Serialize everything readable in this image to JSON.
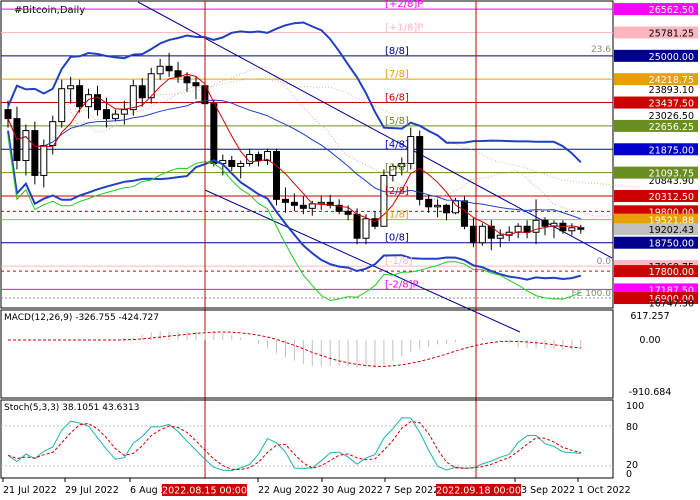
{
  "chart_data": {
    "type": "candlestick",
    "title": "#Bitcoin,Daily",
    "x_ticks": [
      "21 Jul 2022",
      "29 Jul 2022",
      "6 Aug 2022",
      "22 Aug 2022",
      "30 Aug 2022",
      "7 Sep 2022",
      "23 Sep 2022",
      "1 Oct 2022"
    ],
    "x_tick_highlights": [
      "2022.08.15 00:00",
      "2022.09.18 00:00"
    ],
    "y_range": [
      16600,
      26800
    ],
    "price_axis_labels": [
      "26562.50",
      "25781.25",
      "25000.00",
      "24218.75",
      "23893.10",
      "23437.50",
      "23026.50",
      "22656.25",
      "21875.00",
      "20843.90",
      "21093.75",
      "20312.50",
      "19800.00",
      "19521.88",
      "19202.43",
      "18750.00",
      "17968.75",
      "17800.00",
      "17187.50",
      "16900.00",
      "16747.30"
    ],
    "murrey_levels": [
      {
        "label": "[+2/8]P",
        "value": 26562.5,
        "color": "#ff00ff"
      },
      {
        "label": "[+1/8]P",
        "value": 25781.25,
        "color": "#ffb6c1"
      },
      {
        "label": "[8/8]",
        "value": 25000,
        "color": "#00008b"
      },
      {
        "label": "[7/8]",
        "value": 24218.75,
        "color": "#e8a000"
      },
      {
        "label": "[6/8]",
        "value": 23437.5,
        "color": "#cc0000"
      },
      {
        "label": "[5/8]",
        "value": 22656.25,
        "color": "#6b8e23"
      },
      {
        "label": "[4/8]",
        "value": 21875,
        "color": "#0000cd"
      },
      {
        "label": "[3/8]",
        "value": 21093.75,
        "color": "#6b8e23"
      },
      {
        "label": "[2/8]",
        "value": 20312.5,
        "color": "#cc0000"
      },
      {
        "label": "[1/8]",
        "value": 19521.88,
        "color": "#e8a000"
      },
      {
        "label": "[0/8]",
        "value": 18750,
        "color": "#00008b"
      },
      {
        "label": "[-1/8]",
        "value": 17968.75,
        "color": "#ffb6c1"
      },
      {
        "label": "[-2/8]P",
        "value": 17187.5,
        "color": "#ff00ff"
      }
    ],
    "fibo_labels": [
      {
        "label": "23.6",
        "value": 25060
      },
      {
        "label": "0.0",
        "value": 17968.75
      },
      {
        "label": "FE 100.0",
        "value": 16900
      }
    ],
    "macd": {
      "label": "MACD(12,26,9) -326.755 -424.727",
      "scale": [
        "617.257",
        "0.00",
        "-910.684"
      ]
    },
    "stoch": {
      "label": "Stoch(5,3,3) 38.1051 43.6313",
      "scale": [
        "100",
        "80",
        "20",
        "0"
      ]
    },
    "candles": [
      [
        23200,
        23500,
        22600,
        22900
      ],
      [
        22900,
        23300,
        21200,
        21500
      ],
      [
        21500,
        22700,
        21000,
        22500
      ],
      [
        22500,
        22800,
        20700,
        21000
      ],
      [
        21000,
        22200,
        20600,
        22000
      ],
      [
        22000,
        23000,
        21700,
        22800
      ],
      [
        22800,
        24200,
        22600,
        23900
      ],
      [
        23900,
        24300,
        23400,
        24000
      ],
      [
        24000,
        24200,
        23100,
        23300
      ],
      [
        23300,
        23900,
        22900,
        23700
      ],
      [
        23700,
        24000,
        23000,
        23200
      ],
      [
        23200,
        23600,
        22600,
        22900
      ],
      [
        22900,
        23200,
        22800,
        23050
      ],
      [
        23050,
        23500,
        22700,
        23200
      ],
      [
        23200,
        24200,
        23000,
        24000
      ],
      [
        24000,
        24250,
        23300,
        23600
      ],
      [
        23600,
        24600,
        23400,
        24400
      ],
      [
        24400,
        24900,
        24200,
        24650
      ],
      [
        24650,
        25100,
        24300,
        24500
      ],
      [
        24500,
        24800,
        24100,
        24300
      ],
      [
        24300,
        24450,
        23800,
        24100
      ],
      [
        24100,
        24300,
        23550,
        24000
      ],
      [
        24000,
        24100,
        23200,
        23400
      ],
      [
        23400,
        23500,
        21300,
        21400
      ],
      [
        21400,
        21700,
        21000,
        21500
      ],
      [
        21500,
        21650,
        21150,
        21300
      ],
      [
        21300,
        21500,
        20900,
        21400
      ],
      [
        21400,
        21900,
        21300,
        21700
      ],
      [
        21700,
        21800,
        21300,
        21500
      ],
      [
        21500,
        21900,
        21350,
        21800
      ],
      [
        21800,
        21900,
        20000,
        20200
      ],
      [
        20200,
        20600,
        19750,
        20100
      ],
      [
        20100,
        20400,
        19800,
        20000
      ],
      [
        20000,
        20300,
        19700,
        19900
      ],
      [
        19900,
        20150,
        19650,
        20050
      ],
      [
        20050,
        20300,
        19850,
        20100
      ],
      [
        20100,
        20350,
        19900,
        20000
      ],
      [
        20000,
        20200,
        19700,
        19800
      ],
      [
        19800,
        20000,
        19500,
        19700
      ],
      [
        19700,
        19900,
        18700,
        18900
      ],
      [
        18900,
        19700,
        18700,
        19550
      ],
      [
        19550,
        19800,
        19200,
        19300
      ],
      [
        19300,
        21200,
        19300,
        21000
      ],
      [
        21000,
        21400,
        20800,
        21300
      ],
      [
        21300,
        21600,
        21000,
        21400
      ],
      [
        21400,
        22600,
        21200,
        22300
      ],
      [
        22300,
        22500,
        20000,
        20200
      ],
      [
        20200,
        20350,
        19750,
        19950
      ],
      [
        19950,
        20200,
        19600,
        20000
      ],
      [
        20000,
        20050,
        19500,
        19750
      ],
      [
        19750,
        20250,
        19700,
        20150
      ],
      [
        20150,
        20300,
        19200,
        19300
      ],
      [
        19300,
        19600,
        18600,
        18750
      ],
      [
        18750,
        19400,
        18650,
        19300
      ],
      [
        19300,
        19500,
        18500,
        18900
      ],
      [
        18900,
        19200,
        18600,
        19000
      ],
      [
        19000,
        19300,
        18800,
        19100
      ],
      [
        19100,
        19400,
        18900,
        19300
      ],
      [
        19300,
        19500,
        18900,
        19100
      ],
      [
        19100,
        20200,
        18700,
        19500
      ],
      [
        19500,
        19600,
        19000,
        19300
      ],
      [
        19300,
        19500,
        18900,
        19400
      ],
      [
        19400,
        19500,
        19050,
        19150
      ],
      [
        19150,
        19400,
        19000,
        19250
      ],
      [
        19250,
        19350,
        19050,
        19200
      ]
    ]
  }
}
